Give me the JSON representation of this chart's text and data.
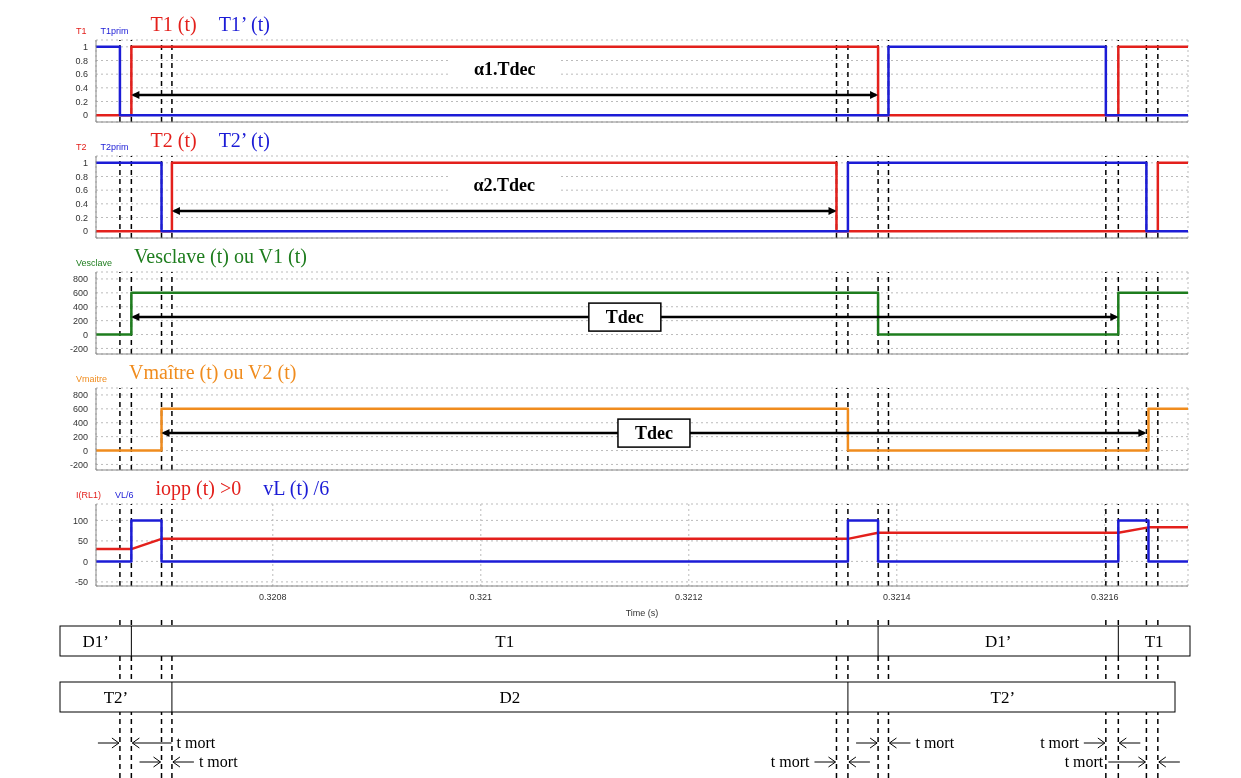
{
  "chart_data": [
    {
      "type": "step",
      "xlim": [
        0.32063,
        0.32168
      ],
      "xticks": [
        0.3208,
        0.321,
        0.3212,
        0.3214,
        0.3216
      ],
      "ylim": [
        -0.1,
        1.1
      ],
      "yticks": [
        0,
        0.2,
        0.4,
        0.6,
        0.8,
        1
      ],
      "grid": true,
      "legend": "top left",
      "tick_labels": "y",
      "series": [
        {
          "name": "T1",
          "color": "#e3201c",
          "x": [
            0.32063,
            0.320664,
            0.321382,
            0.321613,
            0.32168
          ],
          "values": [
            0,
            1,
            0,
            1,
            1
          ]
        },
        {
          "name": "T1prim",
          "color": "#1c1cd6",
          "x": [
            0.32063,
            0.320653,
            0.321392,
            0.321601,
            0.32168
          ],
          "values": [
            1,
            0,
            1,
            0,
            0
          ]
        }
      ],
      "annotations": [
        "T1 (t)",
        "T1’ (t)",
        "α1.Tdec"
      ],
      "ref_lines": [
        {
          "axis": "x",
          "value": 0.320653
        },
        {
          "axis": "x",
          "value": 0.320664
        },
        {
          "axis": "x",
          "value": 0.320693
        },
        {
          "axis": "x",
          "value": 0.320703
        },
        {
          "axis": "x",
          "value": 0.321342
        },
        {
          "axis": "x",
          "value": 0.321353
        },
        {
          "axis": "x",
          "value": 0.321382
        },
        {
          "axis": "x",
          "value": 0.321392
        },
        {
          "axis": "x",
          "value": 0.321601
        },
        {
          "axis": "x",
          "value": 0.321613
        },
        {
          "axis": "x",
          "value": 0.32164
        },
        {
          "axis": "x",
          "value": 0.321651
        }
      ]
    },
    {
      "type": "step",
      "xlim": [
        0.32063,
        0.32168
      ],
      "xticks": [
        0.3208,
        0.321,
        0.3212,
        0.3214,
        0.3216
      ],
      "ylim": [
        -0.1,
        1.1
      ],
      "yticks": [
        0,
        0.2,
        0.4,
        0.6,
        0.8,
        1
      ],
      "grid": true,
      "legend": "top left",
      "tick_labels": "y",
      "series": [
        {
          "name": "T2",
          "color": "#e3201c",
          "x": [
            0.32063,
            0.320703,
            0.321342,
            0.321651,
            0.32168
          ],
          "values": [
            0,
            1,
            0,
            1,
            1
          ]
        },
        {
          "name": "T2prim",
          "color": "#1c1cd6",
          "x": [
            0.32063,
            0.320693,
            0.321353,
            0.32164,
            0.32168
          ],
          "values": [
            1,
            0,
            1,
            0,
            0
          ]
        }
      ],
      "annotations": [
        "T2 (t)",
        "T2’ (t)",
        "α2.Tdec"
      ],
      "ref_lines": [
        {
          "axis": "x",
          "value": 0.320653
        },
        {
          "axis": "x",
          "value": 0.320664
        },
        {
          "axis": "x",
          "value": 0.320693
        },
        {
          "axis": "x",
          "value": 0.320703
        },
        {
          "axis": "x",
          "value": 0.321342
        },
        {
          "axis": "x",
          "value": 0.321353
        },
        {
          "axis": "x",
          "value": 0.321382
        },
        {
          "axis": "x",
          "value": 0.321392
        },
        {
          "axis": "x",
          "value": 0.321601
        },
        {
          "axis": "x",
          "value": 0.321613
        },
        {
          "axis": "x",
          "value": 0.32164
        },
        {
          "axis": "x",
          "value": 0.321651
        }
      ]
    },
    {
      "type": "step",
      "xlim": [
        0.32063,
        0.32168
      ],
      "xticks": [
        0.3208,
        0.321,
        0.3212,
        0.3214,
        0.3216
      ],
      "ylim": [
        -280,
        900
      ],
      "yticks": [
        -200,
        0,
        200,
        400,
        600,
        800
      ],
      "grid": true,
      "legend": "top left",
      "tick_labels": "y",
      "series": [
        {
          "name": "Vesclave",
          "color": "#1e7d1e",
          "x": [
            0.32063,
            0.320664,
            0.321382,
            0.321613,
            0.32168
          ],
          "values": [
            0,
            600,
            0,
            600,
            600
          ]
        }
      ],
      "annotations": [
        "Vesclave (t) ou V1 (t)",
        "Tdec"
      ],
      "ref_lines": [
        {
          "axis": "x",
          "value": 0.320653
        },
        {
          "axis": "x",
          "value": 0.320664
        },
        {
          "axis": "x",
          "value": 0.320693
        },
        {
          "axis": "x",
          "value": 0.320703
        },
        {
          "axis": "x",
          "value": 0.321342
        },
        {
          "axis": "x",
          "value": 0.321353
        },
        {
          "axis": "x",
          "value": 0.321382
        },
        {
          "axis": "x",
          "value": 0.321392
        },
        {
          "axis": "x",
          "value": 0.321601
        },
        {
          "axis": "x",
          "value": 0.321613
        },
        {
          "axis": "x",
          "value": 0.32164
        },
        {
          "axis": "x",
          "value": 0.321651
        }
      ]
    },
    {
      "type": "step",
      "xlim": [
        0.32063,
        0.32168
      ],
      "xticks": [
        0.3208,
        0.321,
        0.3212,
        0.3214,
        0.3216
      ],
      "ylim": [
        -280,
        900
      ],
      "yticks": [
        -200,
        0,
        200,
        400,
        600,
        800
      ],
      "grid": true,
      "legend": "top left",
      "tick_labels": "y",
      "series": [
        {
          "name": "Vmaitre",
          "color": "#f08c1e",
          "x": [
            0.32063,
            0.320693,
            0.321353,
            0.321642,
            0.32168
          ],
          "values": [
            0,
            600,
            0,
            600,
            600
          ]
        }
      ],
      "annotations": [
        "Vmaître (t) ou V2 (t)",
        "Tdec"
      ],
      "ref_lines": [
        {
          "axis": "x",
          "value": 0.320653
        },
        {
          "axis": "x",
          "value": 0.320664
        },
        {
          "axis": "x",
          "value": 0.320693
        },
        {
          "axis": "x",
          "value": 0.320703
        },
        {
          "axis": "x",
          "value": 0.321342
        },
        {
          "axis": "x",
          "value": 0.321353
        },
        {
          "axis": "x",
          "value": 0.321382
        },
        {
          "axis": "x",
          "value": 0.321392
        },
        {
          "axis": "x",
          "value": 0.321601
        },
        {
          "axis": "x",
          "value": 0.321613
        },
        {
          "axis": "x",
          "value": 0.32164
        },
        {
          "axis": "x",
          "value": 0.321651
        }
      ]
    },
    {
      "type": "step",
      "xlim": [
        0.32063,
        0.32168
      ],
      "xticks": [
        0.3208,
        0.321,
        0.3212,
        0.3214,
        0.3216
      ],
      "ylim": [
        -60,
        140
      ],
      "yticks": [
        -50,
        0,
        50,
        100
      ],
      "grid": true,
      "legend": "top left",
      "xlabel": "Time (s)",
      "series": [
        {
          "name": "I(RL1)",
          "type": "line",
          "color": "#e3201c",
          "x": [
            0.32063,
            0.320664,
            0.320693,
            0.321353,
            0.321382,
            0.321613,
            0.321642,
            0.32168
          ],
          "values": [
            30,
            30,
            55,
            55,
            70,
            70,
            83,
            83
          ]
        },
        {
          "name": "VL/6",
          "color": "#1c1cd6",
          "x": [
            0.32063,
            0.320664,
            0.320693,
            0.321353,
            0.321382,
            0.321613,
            0.321642,
            0.32168
          ],
          "values": [
            0,
            100,
            0,
            100,
            0,
            100,
            0,
            0
          ]
        }
      ],
      "annotations": [
        "iopp (t) >0",
        "vL (t) /6"
      ],
      "ref_lines": [
        {
          "axis": "x",
          "value": 0.320653
        },
        {
          "axis": "x",
          "value": 0.320664
        },
        {
          "axis": "x",
          "value": 0.320693
        },
        {
          "axis": "x",
          "value": 0.320703
        },
        {
          "axis": "x",
          "value": 0.321342
        },
        {
          "axis": "x",
          "value": 0.321353
        },
        {
          "axis": "x",
          "value": 0.321382
        },
        {
          "axis": "x",
          "value": 0.321392
        },
        {
          "axis": "x",
          "value": 0.321601
        },
        {
          "axis": "x",
          "value": 0.321613
        },
        {
          "axis": "x",
          "value": 0.32164
        },
        {
          "axis": "x",
          "value": 0.321651
        }
      ]
    },
    {
      "type": "other",
      "annotations": [
        "D1’",
        "T1",
        "D1’",
        "T1",
        "T2’",
        "D2",
        "T2’",
        "t mort",
        "t mort",
        "t mort",
        "t mort",
        "t mort",
        "t mort"
      ]
    }
  ]
}
